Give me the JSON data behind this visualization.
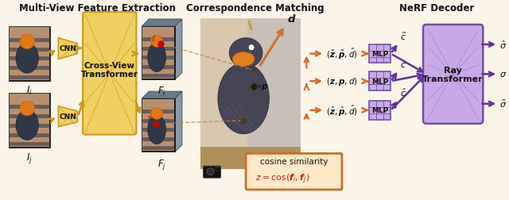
{
  "bg_color": "#faf5e8",
  "title_left": "Multi-View Feature Extraction",
  "title_mid": "Correspondence Matching",
  "title_right": "NeRF Decoder",
  "gold_light": "#f0d060",
  "gold_mid": "#e8c040",
  "gold_border": "#c89820",
  "gold_arrow": "#c89820",
  "purple_light": "#c8aae8",
  "purple_mid": "#b090d8",
  "purple_border": "#7050a0",
  "purple_arrow": "#6030a0",
  "orange_arrow": "#d07030",
  "orange_dashed": "#d08040",
  "red_dot": "#cc0000",
  "text_dark": "#111111",
  "text_red": "#cc2000",
  "cosine_bg": "#fde8c8",
  "cosine_border": "#c87030",
  "scene_bg": "#d8c8b0",
  "scene_wall": "#c8c0b8",
  "bird_dark": "#404050",
  "bird_beak": "#e88020"
}
